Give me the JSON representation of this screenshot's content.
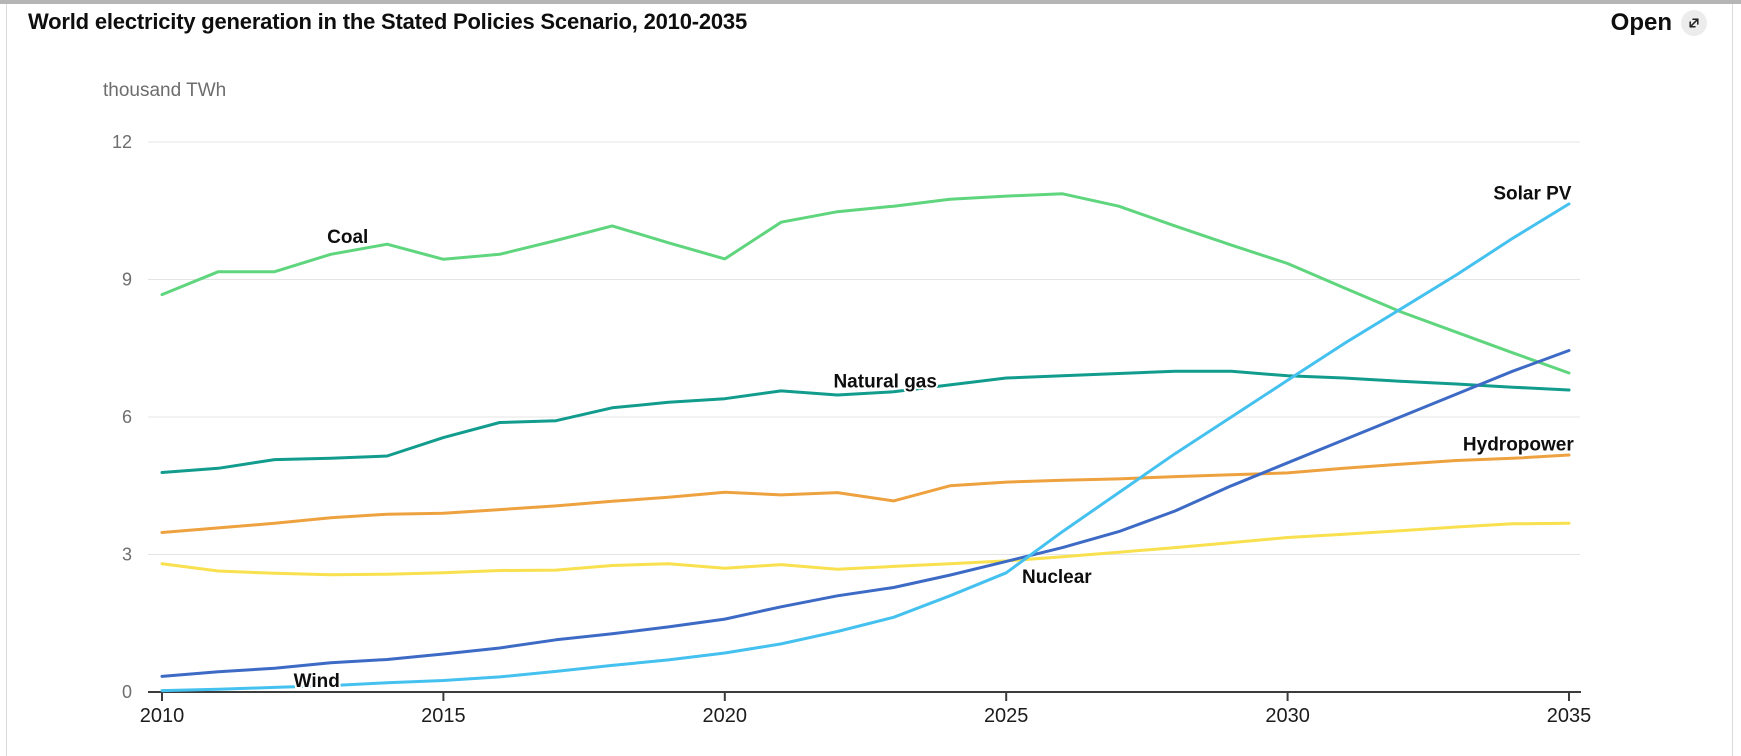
{
  "header": {
    "title": "World electricity generation in the Stated Policies Scenario, 2010-2035",
    "open_label": "Open",
    "open_icon": "external-link-icon"
  },
  "chart_data": {
    "type": "line",
    "title": "World electricity generation in the Stated Policies Scenario, 2010-2035",
    "unit_label": "thousand TWh",
    "xlim": [
      2010,
      2035
    ],
    "ylim": [
      0,
      12
    ],
    "x_ticks": [
      2010,
      2015,
      2020,
      2025,
      2030,
      2035
    ],
    "y_ticks": [
      0,
      3,
      6,
      9,
      12
    ],
    "grid": "horizontal",
    "legend": "inline-labels",
    "years": [
      2010,
      2011,
      2012,
      2013,
      2014,
      2015,
      2016,
      2017,
      2018,
      2019,
      2020,
      2021,
      2022,
      2023,
      2024,
      2025,
      2026,
      2027,
      2028,
      2029,
      2030,
      2031,
      2032,
      2033,
      2034,
      2035
    ],
    "series": [
      {
        "name": "Coal",
        "color": "#5FD57E",
        "label_year": 2013.3,
        "label_value": 9.95,
        "values": [
          8.67,
          9.17,
          9.17,
          9.55,
          9.77,
          9.44,
          9.55,
          9.85,
          10.17,
          9.8,
          9.45,
          10.25,
          10.48,
          10.6,
          10.75,
          10.82,
          10.87,
          10.6,
          10.17,
          9.75,
          9.35,
          8.82,
          8.3,
          7.85,
          7.4,
          6.96
        ]
      },
      {
        "name": "Natural gas",
        "color": "#129C8E",
        "label_year": 2022.85,
        "label_value": 6.8,
        "values": [
          4.79,
          4.88,
          5.07,
          5.1,
          5.15,
          5.55,
          5.88,
          5.92,
          6.2,
          6.32,
          6.4,
          6.57,
          6.48,
          6.55,
          6.7,
          6.85,
          6.9,
          6.95,
          7.0,
          7.0,
          6.9,
          6.85,
          6.78,
          6.72,
          6.65,
          6.59
        ]
      },
      {
        "name": "Hydropower",
        "color": "#EDA23F",
        "label_year": 2034.1,
        "label_value": 5.42,
        "values": [
          3.48,
          3.58,
          3.68,
          3.8,
          3.88,
          3.9,
          3.98,
          4.06,
          4.16,
          4.25,
          4.36,
          4.3,
          4.35,
          4.17,
          4.5,
          4.58,
          4.62,
          4.65,
          4.7,
          4.74,
          4.78,
          4.88,
          4.97,
          5.05,
          5.1,
          5.17
        ]
      },
      {
        "name": "Nuclear",
        "color": "#F8E04E",
        "label_year": 2025.9,
        "label_value": 2.53,
        "values": [
          2.8,
          2.64,
          2.59,
          2.56,
          2.57,
          2.6,
          2.65,
          2.66,
          2.76,
          2.8,
          2.7,
          2.78,
          2.68,
          2.74,
          2.8,
          2.86,
          2.95,
          3.05,
          3.15,
          3.26,
          3.37,
          3.44,
          3.52,
          3.6,
          3.67,
          3.68
        ]
      },
      {
        "name": "Wind",
        "color": "#3C6AC5",
        "label_year": 2012.75,
        "label_value": 0.26,
        "values": [
          0.34,
          0.44,
          0.52,
          0.64,
          0.71,
          0.83,
          0.96,
          1.14,
          1.27,
          1.42,
          1.59,
          1.86,
          2.1,
          2.28,
          2.55,
          2.85,
          3.15,
          3.5,
          3.95,
          4.5,
          5.0,
          5.5,
          6.0,
          6.5,
          7.0,
          7.45
        ]
      },
      {
        "name": "Solar PV",
        "color": "#45C1F0",
        "label_year": 2034.35,
        "label_value": 10.9,
        "values": [
          0.03,
          0.06,
          0.1,
          0.14,
          0.2,
          0.25,
          0.33,
          0.45,
          0.58,
          0.7,
          0.85,
          1.05,
          1.32,
          1.63,
          2.1,
          2.6,
          3.5,
          4.35,
          5.2,
          6.0,
          6.8,
          7.6,
          8.35,
          9.1,
          9.9,
          10.65
        ]
      }
    ]
  }
}
